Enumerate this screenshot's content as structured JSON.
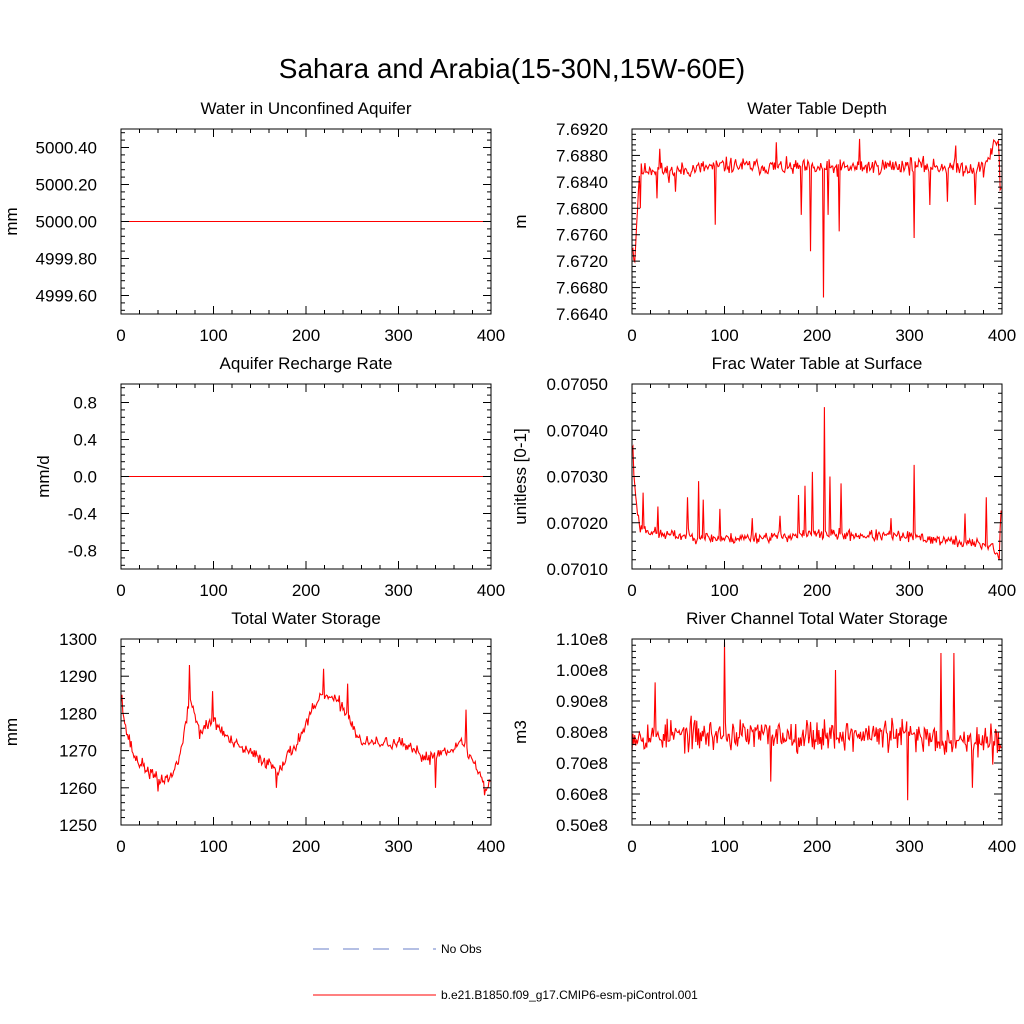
{
  "figure": {
    "title": "Sahara and Arabia(15-30N,15W-60E)"
  },
  "colors": {
    "model": "#ff0000",
    "obs": "#6a7fc8",
    "axis": "#000000"
  },
  "legend": {
    "items": [
      {
        "label": "No Obs",
        "style": "dashed",
        "color": "#6a7fc8"
      },
      {
        "label": "b.e21.B1850.f09_g17.CMIP6-esm-piControl.001",
        "style": "solid",
        "color": "#ff0000"
      }
    ]
  },
  "chart_data": [
    {
      "type": "line",
      "title": "Water in Unconfined Aquifer",
      "xlabel": "",
      "ylabel": "mm",
      "xlim": [
        0,
        400
      ],
      "ylim": [
        4999.5,
        5000.5
      ],
      "xticks": [
        0,
        100,
        200,
        300,
        400
      ],
      "xtick_labels": [
        "0",
        "100",
        "200",
        "300",
        "400"
      ],
      "yticks": [
        4999.6,
        4999.8,
        5000.0,
        5000.2,
        5000.4
      ],
      "ytick_labels": [
        "4999.60",
        "4999.80",
        "5000.00",
        "5000.20",
        "5000.40"
      ],
      "series": [
        {
          "name": "b.e21.B1850.f09_g17.CMIP6-esm-piControl.001",
          "gen": "const",
          "value": 5000.0,
          "n": 400
        }
      ]
    },
    {
      "type": "line",
      "title": "Water Table Depth",
      "xlabel": "",
      "ylabel": "m",
      "xlim": [
        0,
        400
      ],
      "ylim": [
        7.664,
        7.692
      ],
      "xticks": [
        0,
        100,
        200,
        300,
        400
      ],
      "xtick_labels": [
        "0",
        "100",
        "200",
        "300",
        "400"
      ],
      "yticks": [
        7.664,
        7.668,
        7.672,
        7.676,
        7.68,
        7.684,
        7.688,
        7.692
      ],
      "ytick_labels": [
        "7.6640",
        "7.6680",
        "7.6720",
        "7.6760",
        "7.6800",
        "7.6840",
        "7.6880",
        "7.6920"
      ],
      "series": [
        {
          "name": "b.e21.B1850.f09_g17.CMIP6-esm-piControl.001",
          "gen": "noise",
          "n": 400,
          "seed": 11,
          "anchors": [
            [
              0,
              7.6745
            ],
            [
              3,
              7.6722
            ],
            [
              8,
              7.6855
            ],
            [
              20,
              7.686
            ],
            [
              40,
              7.6855
            ],
            [
              100,
              7.6865
            ],
            [
              200,
              7.686
            ],
            [
              300,
              7.6865
            ],
            [
              380,
              7.686
            ],
            [
              390,
              7.689
            ],
            [
              396,
              7.6905
            ],
            [
              399,
              7.683
            ]
          ],
          "noise": 0.0018,
          "spikes": [
            [
              2,
              7.6722
            ],
            [
              9,
              7.68
            ],
            [
              27,
              7.6815
            ],
            [
              47,
              7.6825
            ],
            [
              90,
              7.6775
            ],
            [
              183,
              7.679
            ],
            [
              193,
              7.6735
            ],
            [
              207,
              7.6665
            ],
            [
              212,
              7.679
            ],
            [
              224,
              7.6765
            ],
            [
              305,
              7.6755
            ],
            [
              322,
              7.6805
            ],
            [
              341,
              7.681
            ],
            [
              371,
              7.6805
            ],
            [
              398,
              7.6828
            ],
            [
              30,
              7.689
            ],
            [
              156,
              7.69
            ],
            [
              246,
              7.6905
            ],
            [
              350,
              7.6895
            ]
          ]
        }
      ]
    },
    {
      "type": "line",
      "title": "Aquifer Recharge Rate",
      "xlabel": "",
      "ylabel": "mm/d",
      "xlim": [
        0,
        400
      ],
      "ylim": [
        -1.0,
        1.0
      ],
      "xticks": [
        0,
        100,
        200,
        300,
        400
      ],
      "xtick_labels": [
        "0",
        "100",
        "200",
        "300",
        "400"
      ],
      "yticks": [
        -0.8,
        -0.4,
        0.0,
        0.4,
        0.8
      ],
      "ytick_labels": [
        "-0.8",
        "-0.4",
        "0.0",
        "0.4",
        "0.8"
      ],
      "series": [
        {
          "name": "b.e21.B1850.f09_g17.CMIP6-esm-piControl.001",
          "gen": "const",
          "value": 0.0,
          "n": 400
        }
      ]
    },
    {
      "type": "line",
      "title": "Frac Water Table at Surface",
      "xlabel": "",
      "ylabel": "unitless [0-1]",
      "xlim": [
        0,
        400
      ],
      "ylim": [
        0.0701,
        0.0705
      ],
      "xticks": [
        0,
        100,
        200,
        300,
        400
      ],
      "xtick_labels": [
        "0",
        "100",
        "200",
        "300",
        "400"
      ],
      "yticks": [
        0.0701,
        0.0702,
        0.0703,
        0.0704,
        0.0705
      ],
      "ytick_labels": [
        "0.07010",
        "0.07020",
        "0.07030",
        "0.07040",
        "0.07050"
      ],
      "series": [
        {
          "name": "b.e21.B1850.f09_g17.CMIP6-esm-piControl.001",
          "gen": "noise",
          "n": 400,
          "seed": 23,
          "anchors": [
            [
              0,
              0.070365
            ],
            [
              3,
              0.07028
            ],
            [
              8,
              0.07019
            ],
            [
              30,
              0.070175
            ],
            [
              100,
              0.070165
            ],
            [
              200,
              0.070175
            ],
            [
              300,
              0.07017
            ],
            [
              390,
              0.07015
            ],
            [
              396,
              0.070125
            ],
            [
              399,
              0.07022
            ]
          ],
          "noise": 1.8e-05,
          "spikes": [
            [
              1,
              0.070365
            ],
            [
              12,
              0.070265
            ],
            [
              28,
              0.070235
            ],
            [
              60,
              0.070255
            ],
            [
              72,
              0.07029
            ],
            [
              77,
              0.07025
            ],
            [
              95,
              0.07023
            ],
            [
              130,
              0.07021
            ],
            [
              160,
              0.070215
            ],
            [
              180,
              0.07026
            ],
            [
              187,
              0.07028
            ],
            [
              195,
              0.07031
            ],
            [
              208,
              0.07045
            ],
            [
              214,
              0.0703
            ],
            [
              226,
              0.070285
            ],
            [
              280,
              0.07021
            ],
            [
              305,
              0.070325
            ],
            [
              360,
              0.07022
            ],
            [
              383,
              0.070255
            ],
            [
              397,
              0.07012
            ]
          ]
        }
      ]
    },
    {
      "type": "line",
      "title": "Total Water Storage",
      "xlabel": "",
      "ylabel": "mm",
      "xlim": [
        0,
        400
      ],
      "ylim": [
        1250,
        1300
      ],
      "xticks": [
        0,
        100,
        200,
        300,
        400
      ],
      "xtick_labels": [
        "0",
        "100",
        "200",
        "300",
        "400"
      ],
      "yticks": [
        1250,
        1260,
        1270,
        1280,
        1290,
        1300
      ],
      "ytick_labels": [
        "1250",
        "1260",
        "1270",
        "1280",
        "1290",
        "1300"
      ],
      "series": [
        {
          "name": "b.e21.B1850.f09_g17.CMIP6-esm-piControl.001",
          "gen": "noise",
          "n": 400,
          "seed": 37,
          "anchors": [
            [
              0,
              1284
            ],
            [
              5,
              1276
            ],
            [
              15,
              1268
            ],
            [
              40,
              1262
            ],
            [
              55,
              1263
            ],
            [
              65,
              1270
            ],
            [
              75,
              1284
            ],
            [
              85,
              1275
            ],
            [
              100,
              1278
            ],
            [
              120,
              1272
            ],
            [
              150,
              1268
            ],
            [
              170,
              1265
            ],
            [
              190,
              1272
            ],
            [
              210,
              1282
            ],
            [
              220,
              1285
            ],
            [
              240,
              1282
            ],
            [
              260,
              1272
            ],
            [
              300,
              1272
            ],
            [
              330,
              1268
            ],
            [
              350,
              1270
            ],
            [
              370,
              1272
            ],
            [
              385,
              1265
            ],
            [
              395,
              1260
            ],
            [
              399,
              1262
            ]
          ],
          "noise": 2.6,
          "spikes": [
            [
              1,
              1285
            ],
            [
              40,
              1259
            ],
            [
              74,
              1293
            ],
            [
              99,
              1286
            ],
            [
              168,
              1260
            ],
            [
              219,
              1292
            ],
            [
              245,
              1288
            ],
            [
              340,
              1260
            ],
            [
              373,
              1281
            ],
            [
              393,
              1258
            ]
          ]
        }
      ]
    },
    {
      "type": "line",
      "title": "River Channel Total Water Storage",
      "xlabel": "",
      "ylabel": "m3",
      "xlim": [
        0,
        400
      ],
      "ylim": [
        50000000,
        110000000
      ],
      "xticks": [
        0,
        100,
        200,
        300,
        400
      ],
      "xtick_labels": [
        "0",
        "100",
        "200",
        "300",
        "400"
      ],
      "yticks": [
        50000000,
        60000000,
        70000000,
        80000000,
        90000000,
        100000000,
        110000000
      ],
      "ytick_labels": [
        "0.50e8",
        "0.60e8",
        "0.70e8",
        "0.80e8",
        "0.90e8",
        "1.00e8",
        "1.10e8"
      ],
      "series": [
        {
          "name": "b.e21.B1850.f09_g17.CMIP6-esm-piControl.001",
          "gen": "noise",
          "n": 400,
          "seed": 53,
          "anchors": [
            [
              0,
              79000000
            ],
            [
              100,
              79000000
            ],
            [
              200,
              79000000
            ],
            [
              300,
              79000000
            ],
            [
              399,
              76000000
            ]
          ],
          "noise": 7500000,
          "spikes": [
            [
              100,
              109000000
            ],
            [
              298,
              58000000
            ],
            [
              334,
              105500000
            ],
            [
              348,
              105500000
            ],
            [
              368,
              62000000
            ],
            [
              220,
              100000000
            ],
            [
              25,
              96000000
            ],
            [
              150,
              64000000
            ]
          ]
        }
      ]
    }
  ]
}
